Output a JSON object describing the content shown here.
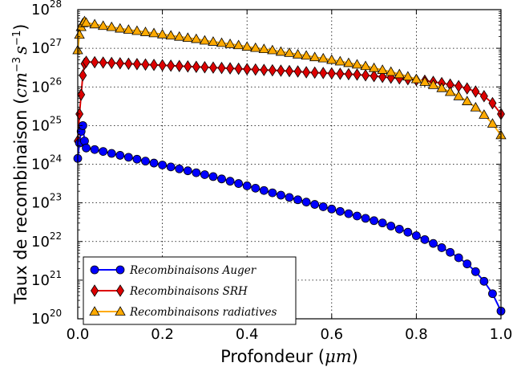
{
  "chart_data": {
    "type": "line",
    "xlabel_text": "Profondeur (",
    "xlabel_unit": "μm",
    "xlabel_close": ")",
    "ylabel_text": "Taux de recombinaison (",
    "ylabel_unit_base1": "cm",
    "ylabel_unit_exp1": "−3",
    "ylabel_unit_base2": "s",
    "ylabel_unit_exp2": "−1",
    "ylabel_close": ")",
    "xlim": [
      0,
      1.0
    ],
    "ylim_log10": [
      20,
      28
    ],
    "y_scale": "log",
    "x_ticks": [
      "0.0",
      "0.2",
      "0.4",
      "0.6",
      "0.8",
      "1.0"
    ],
    "y_ticks": [
      {
        "base": "10",
        "exp": "20"
      },
      {
        "base": "10",
        "exp": "21"
      },
      {
        "base": "10",
        "exp": "22"
      },
      {
        "base": "10",
        "exp": "23"
      },
      {
        "base": "10",
        "exp": "24"
      },
      {
        "base": "10",
        "exp": "25"
      },
      {
        "base": "10",
        "exp": "26"
      },
      {
        "base": "10",
        "exp": "27"
      },
      {
        "base": "10",
        "exp": "28"
      }
    ],
    "grid": true,
    "legend_position": "bottom-left",
    "series": [
      {
        "name": "Recombinaisons Auger",
        "color": "#0000ff",
        "marker": "circle",
        "x": [
          0.0,
          0.004,
          0.008,
          0.012,
          0.016,
          0.02,
          0.04,
          0.06,
          0.08,
          0.1,
          0.12,
          0.14,
          0.16,
          0.18,
          0.2,
          0.22,
          0.24,
          0.26,
          0.28,
          0.3,
          0.32,
          0.34,
          0.36,
          0.38,
          0.4,
          0.42,
          0.44,
          0.46,
          0.48,
          0.5,
          0.52,
          0.54,
          0.56,
          0.58,
          0.6,
          0.62,
          0.64,
          0.66,
          0.68,
          0.7,
          0.72,
          0.74,
          0.76,
          0.78,
          0.8,
          0.82,
          0.84,
          0.86,
          0.88,
          0.9,
          0.92,
          0.94,
          0.96,
          0.98,
          1.0
        ],
        "y_log10": [
          24.15,
          24.55,
          24.85,
          25.0,
          24.6,
          24.42,
          24.38,
          24.33,
          24.28,
          24.23,
          24.18,
          24.13,
          24.08,
          24.03,
          23.98,
          23.93,
          23.88,
          23.83,
          23.78,
          23.73,
          23.68,
          23.62,
          23.56,
          23.5,
          23.44,
          23.38,
          23.32,
          23.26,
          23.2,
          23.14,
          23.08,
          23.02,
          22.96,
          22.9,
          22.84,
          22.78,
          22.72,
          22.66,
          22.6,
          22.54,
          22.48,
          22.4,
          22.32,
          22.24,
          22.15,
          22.05,
          21.95,
          21.84,
          21.72,
          21.58,
          21.42,
          21.22,
          20.97,
          20.65,
          20.2
        ]
      },
      {
        "name": "Recombinaisons SRH",
        "color": "#dd0000",
        "marker": "diamond",
        "x": [
          0.0,
          0.004,
          0.008,
          0.012,
          0.016,
          0.02,
          0.04,
          0.06,
          0.08,
          0.1,
          0.12,
          0.14,
          0.16,
          0.18,
          0.2,
          0.22,
          0.24,
          0.26,
          0.28,
          0.3,
          0.32,
          0.34,
          0.36,
          0.38,
          0.4,
          0.42,
          0.44,
          0.46,
          0.48,
          0.5,
          0.52,
          0.54,
          0.56,
          0.58,
          0.6,
          0.62,
          0.64,
          0.66,
          0.68,
          0.7,
          0.72,
          0.74,
          0.76,
          0.78,
          0.8,
          0.82,
          0.84,
          0.86,
          0.88,
          0.9,
          0.92,
          0.94,
          0.96,
          0.98,
          1.0
        ],
        "y_log10": [
          24.6,
          25.3,
          25.8,
          26.3,
          26.6,
          26.65,
          26.64,
          26.63,
          26.62,
          26.61,
          26.6,
          26.59,
          26.58,
          26.57,
          26.56,
          26.55,
          26.54,
          26.53,
          26.52,
          26.51,
          26.5,
          26.49,
          26.48,
          26.47,
          26.46,
          26.45,
          26.44,
          26.43,
          26.42,
          26.41,
          26.4,
          26.38,
          26.37,
          26.36,
          26.35,
          26.34,
          26.33,
          26.32,
          26.3,
          26.28,
          26.26,
          26.24,
          26.22,
          26.2,
          26.18,
          26.16,
          26.13,
          26.1,
          26.06,
          26.02,
          25.96,
          25.88,
          25.76,
          25.58,
          25.3
        ]
      },
      {
        "name": "Recombinaisons radiatives",
        "color": "#ffaa00",
        "marker": "triangle",
        "x": [
          0.0,
          0.004,
          0.008,
          0.012,
          0.016,
          0.02,
          0.04,
          0.06,
          0.08,
          0.1,
          0.12,
          0.14,
          0.16,
          0.18,
          0.2,
          0.22,
          0.24,
          0.26,
          0.28,
          0.3,
          0.32,
          0.34,
          0.36,
          0.38,
          0.4,
          0.42,
          0.44,
          0.46,
          0.48,
          0.5,
          0.52,
          0.54,
          0.56,
          0.58,
          0.6,
          0.62,
          0.64,
          0.66,
          0.68,
          0.7,
          0.72,
          0.74,
          0.76,
          0.78,
          0.8,
          0.82,
          0.84,
          0.86,
          0.88,
          0.9,
          0.92,
          0.94,
          0.96,
          0.98,
          1.0
        ],
        "y_log10": [
          26.95,
          27.35,
          27.55,
          27.65,
          27.7,
          27.66,
          27.62,
          27.58,
          27.55,
          27.51,
          27.48,
          27.45,
          27.42,
          27.39,
          27.36,
          27.33,
          27.3,
          27.27,
          27.24,
          27.2,
          27.17,
          27.14,
          27.11,
          27.08,
          27.04,
          27.01,
          26.98,
          26.95,
          26.91,
          26.88,
          26.84,
          26.81,
          26.77,
          26.74,
          26.7,
          26.66,
          26.62,
          26.58,
          26.54,
          26.49,
          26.44,
          26.39,
          26.33,
          26.27,
          26.2,
          26.13,
          26.05,
          25.97,
          25.87,
          25.76,
          25.63,
          25.47,
          25.28,
          25.05,
          24.75
        ]
      }
    ]
  }
}
